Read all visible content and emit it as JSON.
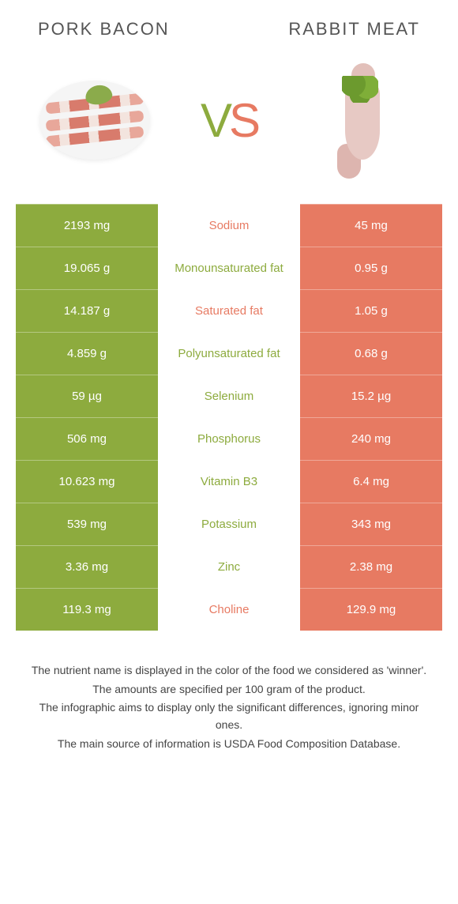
{
  "header": {
    "left_title": "PORK BACON",
    "right_title": "RABBIT MEAT"
  },
  "vs": {
    "v": "V",
    "s": "S"
  },
  "colors": {
    "left_bg": "#8dab3e",
    "right_bg": "#e77a62",
    "left_text": "#8dab3e",
    "right_text": "#e77a62",
    "v_color": "#8dab3e",
    "s_color": "#e77a62"
  },
  "rows": [
    {
      "left": "2193 mg",
      "label": "Sodium",
      "right": "45 mg",
      "winner": "right"
    },
    {
      "left": "19.065 g",
      "label": "Monounsaturated fat",
      "right": "0.95 g",
      "winner": "left"
    },
    {
      "left": "14.187 g",
      "label": "Saturated fat",
      "right": "1.05 g",
      "winner": "right"
    },
    {
      "left": "4.859 g",
      "label": "Polyunsaturated fat",
      "right": "0.68 g",
      "winner": "left"
    },
    {
      "left": "59 µg",
      "label": "Selenium",
      "right": "15.2 µg",
      "winner": "left"
    },
    {
      "left": "506 mg",
      "label": "Phosphorus",
      "right": "240 mg",
      "winner": "left"
    },
    {
      "left": "10.623 mg",
      "label": "Vitamin B3",
      "right": "6.4 mg",
      "winner": "left"
    },
    {
      "left": "539 mg",
      "label": "Potassium",
      "right": "343 mg",
      "winner": "left"
    },
    {
      "left": "3.36 mg",
      "label": "Zinc",
      "right": "2.38 mg",
      "winner": "left"
    },
    {
      "left": "119.3 mg",
      "label": "Choline",
      "right": "129.9 mg",
      "winner": "right"
    }
  ],
  "footer": {
    "line1": "The nutrient name is displayed in the color of the food we considered as 'winner'.",
    "line2": "The amounts are specified per 100 gram of the product.",
    "line3": "The infographic aims to display only the significant differences, ignoring minor ones.",
    "line4": "The main source of information is USDA Food Composition Database."
  }
}
